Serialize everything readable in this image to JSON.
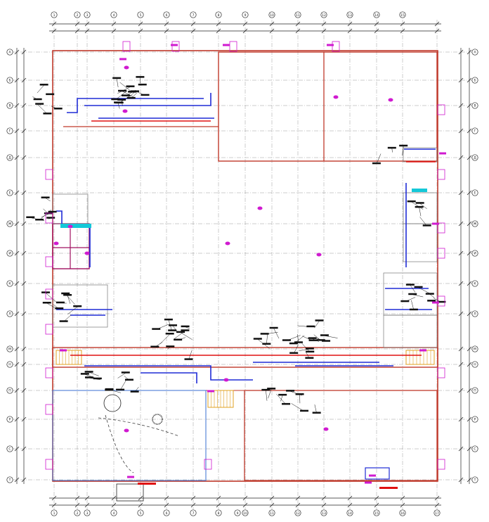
{
  "drawing": {
    "colors": {
      "background": "#ffffff",
      "grid": "#9a9a9a",
      "wall": "#c0392b",
      "pipe_supply": "#1f2bd6",
      "pipe_return": "#e01010",
      "label": "#111111",
      "marker": "#d01ad0",
      "cyan": "#14c8d8",
      "stair": "#e0a020"
    },
    "grid_axes_top": [
      "1",
      "2",
      "3",
      "4",
      "5",
      "6",
      "7",
      "8",
      "9",
      "10",
      "11",
      "12",
      "13",
      "14",
      "15"
    ],
    "grid_axes_bottom": [
      "1",
      "2",
      "3",
      "4",
      "5",
      "6",
      "7",
      "8",
      "9",
      "10",
      "11",
      "12",
      "13",
      "14",
      "15",
      "16",
      "17"
    ],
    "grid_axes_left": [
      "А",
      "Б",
      "В",
      "Г",
      "Д",
      "Е",
      "Ж",
      "И",
      "К",
      "Л",
      "М",
      "Н",
      "П",
      "Р",
      "С",
      "Т"
    ],
    "grid_axes_right": [
      "А",
      "Б",
      "В",
      "Г",
      "Д",
      "Е",
      "Ж",
      "И",
      "К",
      "Л",
      "М",
      "Н",
      "П",
      "Р",
      "С",
      "Т"
    ]
  }
}
